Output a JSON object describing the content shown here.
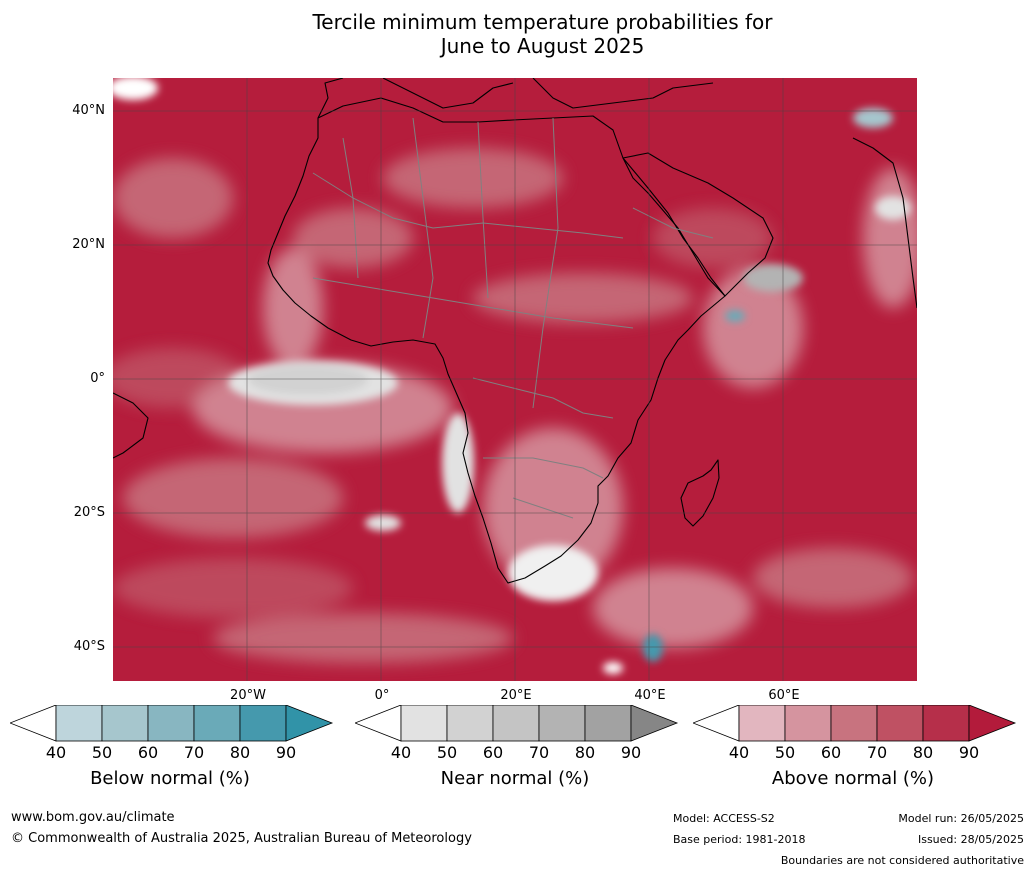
{
  "title": {
    "line1": "Tercile minimum temperature probabilities for",
    "line2": "June to August 2025"
  },
  "map": {
    "lat_labels": [
      "40°N",
      "20°N",
      "0°",
      "20°S",
      "40°S"
    ],
    "lon_labels": [
      "20°W",
      "0°",
      "20°E",
      "40°E",
      "60°E"
    ],
    "colors": {
      "ocean_dominant": "#b51d3c",
      "land_outline": "#000000",
      "borders": "#808080",
      "grid": "#444444",
      "near_normal_patch": "#d7d7d7",
      "below_normal_patch": "#6eb2c0"
    }
  },
  "colorbars": [
    {
      "name": "below",
      "title": "Below normal (%)",
      "ticks": [
        "40",
        "50",
        "60",
        "70",
        "80",
        "90"
      ],
      "colors": [
        "#ffffff",
        "#bed5dc",
        "#a6c6cd",
        "#88b6c1",
        "#6aaab8",
        "#4599ad",
        "#3193a8"
      ]
    },
    {
      "name": "near",
      "title": "Near normal (%)",
      "ticks": [
        "40",
        "50",
        "60",
        "70",
        "80",
        "90"
      ],
      "colors": [
        "#ffffff",
        "#e2e2e2",
        "#d2d2d2",
        "#c4c4c4",
        "#b3b3b3",
        "#a2a2a2",
        "#868686"
      ]
    },
    {
      "name": "above",
      "title": "Above normal (%)",
      "ticks": [
        "40",
        "50",
        "60",
        "70",
        "80",
        "90"
      ],
      "colors": [
        "#ffffff",
        "#e2b6bf",
        "#d5949f",
        "#c8737f",
        "#bf5163",
        "#b62f4a",
        "#b31b3b"
      ]
    }
  ],
  "footer": {
    "url": "www.bom.gov.au/climate",
    "copyright": "© Commonwealth of Australia 2025, Australian Bureau of Meteorology",
    "model": "Model: ACCESS-S2",
    "base_period": "Base period: 1981-2018",
    "model_run": "Model run: 26/05/2025",
    "issued": "Issued: 28/05/2025",
    "disclaimer": "Boundaries are not considered authoritative"
  }
}
